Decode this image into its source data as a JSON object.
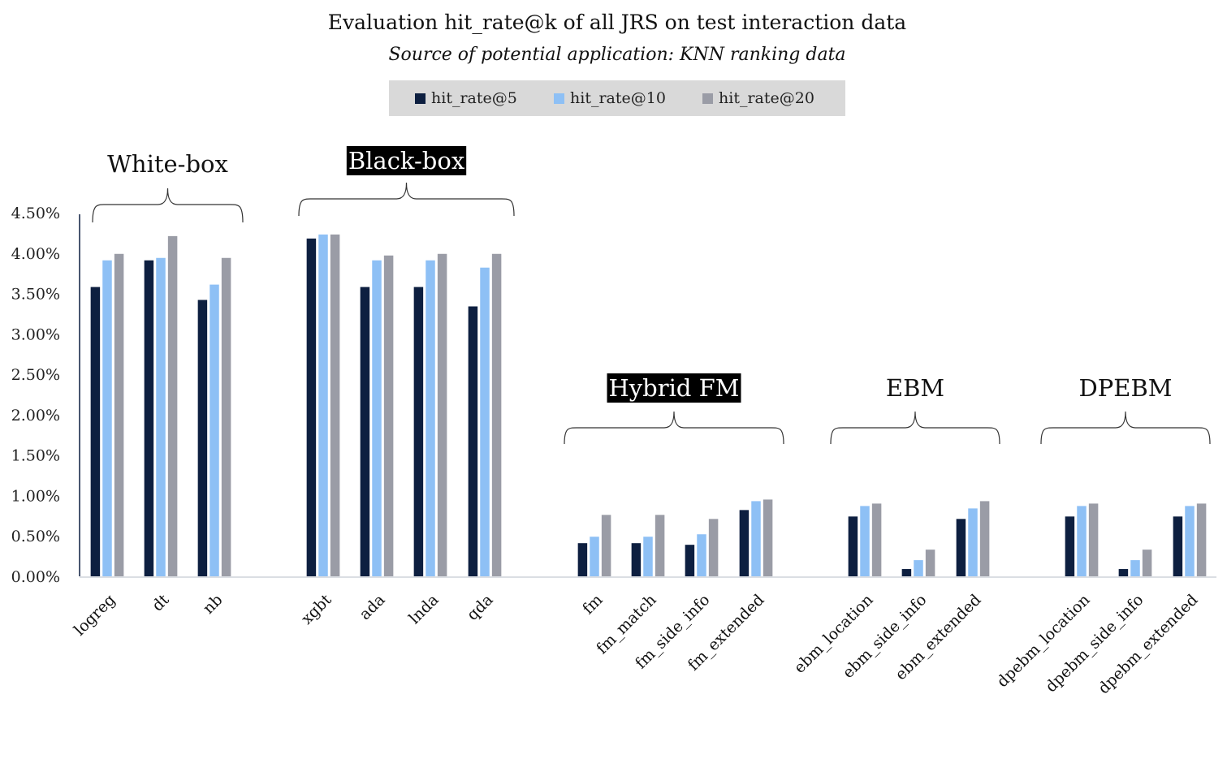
{
  "chart_data": {
    "type": "bar",
    "title": "Evaluation hit_rate@k of all JRS on test interaction data",
    "subtitle": "Source of potential application: KNN ranking data",
    "xlabel": "",
    "ylabel": "",
    "ylim": [
      0,
      4.5
    ],
    "y_ticks": [
      "0.00%",
      "0.50%",
      "1.00%",
      "1.50%",
      "2.00%",
      "2.50%",
      "3.00%",
      "3.50%",
      "4.00%",
      "4.50%"
    ],
    "legend_position": "top-center",
    "grid": false,
    "categories": [
      "logreg",
      "dt",
      "nb",
      "xgbt",
      "ada",
      "lnda",
      "qda",
      "fm",
      "fm_match",
      "fm_side_info",
      "fm_extended",
      "ebm_location",
      "ebm_side_info",
      "ebm_extended",
      "dpebm_location",
      "dpebm_side_info",
      "dpebm_extended"
    ],
    "series": [
      {
        "name": "hit_rate@5",
        "color": "#0d1f40",
        "values": [
          3.58,
          3.91,
          3.42,
          4.18,
          3.58,
          3.58,
          3.34,
          0.41,
          0.41,
          0.39,
          0.82,
          0.74,
          0.09,
          0.71,
          0.74,
          0.09,
          0.74
        ]
      },
      {
        "name": "hit_rate@10",
        "color": "#8ec0f5",
        "values": [
          3.91,
          3.94,
          3.61,
          4.23,
          3.91,
          3.91,
          3.82,
          0.49,
          0.49,
          0.52,
          0.93,
          0.87,
          0.2,
          0.84,
          0.87,
          0.2,
          0.87
        ]
      },
      {
        "name": "hit_rate@20",
        "color": "#9a9ca6",
        "values": [
          3.99,
          4.21,
          3.94,
          4.23,
          3.97,
          3.99,
          3.99,
          0.76,
          0.76,
          0.71,
          0.95,
          0.9,
          0.33,
          0.93,
          0.9,
          0.33,
          0.9
        ]
      }
    ],
    "groups": [
      {
        "label": "White-box",
        "inverted": false,
        "category_indices": [
          0,
          1,
          2
        ]
      },
      {
        "label": "Black-box",
        "inverted": true,
        "category_indices": [
          3,
          4,
          5,
          6
        ]
      },
      {
        "label": "Hybrid FM",
        "inverted": true,
        "category_indices": [
          7,
          8,
          9,
          10
        ]
      },
      {
        "label": "EBM",
        "inverted": false,
        "category_indices": [
          11,
          12,
          13
        ]
      },
      {
        "label": "DPEBM",
        "inverted": false,
        "category_indices": [
          14,
          15,
          16
        ]
      }
    ]
  }
}
